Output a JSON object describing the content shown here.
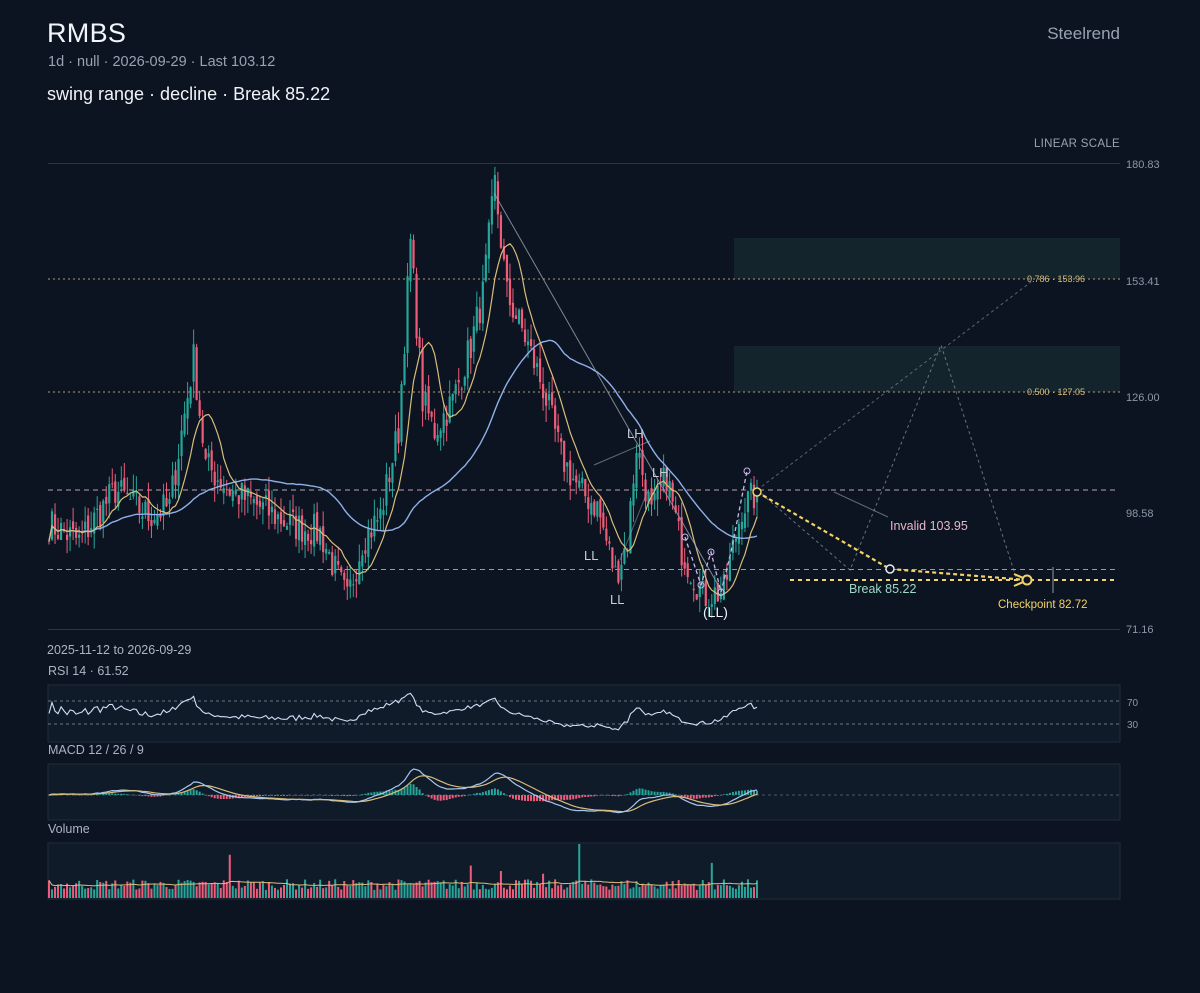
{
  "header": {
    "ticker": "RMBS",
    "meta": "1d · null · 2026-09-29 · Last 103.12",
    "setup": "swing range · decline · Break 85.22",
    "brand": "Steelrend",
    "scale_label": "LINEAR SCALE",
    "date_range": "2025-11-12 to 2026-09-29"
  },
  "panels": {
    "rsi": {
      "title": "RSI 14 · 61.52",
      "levels": [
        "70",
        "30"
      ]
    },
    "macd": {
      "title": "MACD 12 / 26 / 9"
    },
    "volume": {
      "title": "Volume"
    }
  },
  "annotations": {
    "invalid": "Invalid 103.95",
    "break": "Break 85.22",
    "checkpoint": "Checkpoint 82.72",
    "fib_786": "0.786 · 153.96",
    "fib_500": "0.500 · 127.05",
    "swings": [
      {
        "label": "LH",
        "value": 114.8
      },
      {
        "label": "LH",
        "value": 107.5
      },
      {
        "label": "LL",
        "value": 84.0
      },
      {
        "label": "LL",
        "value": 79.0
      },
      {
        "label": "(LL)",
        "value": 80.2
      }
    ]
  },
  "colors": {
    "background": "#0c1421",
    "up": "#26a69a",
    "down": "#ef5c7a",
    "ma_fast": "#d9bd7a",
    "ma_slow": "#8fb0e8",
    "projection": "#f3d267",
    "zone": "#14262e"
  },
  "chart_data": {
    "type": "candlestick",
    "title": "RMBS",
    "y_ticks": [
      180.83,
      153.41,
      126.0,
      98.58,
      71.16
    ],
    "ylim": [
      71.16,
      180.83
    ],
    "levels": {
      "invalid": 103.95,
      "break": 85.22,
      "checkpoint": 82.72,
      "fib_0_786": 153.96,
      "fib_0_500": 127.05
    },
    "key_points": [
      {
        "label": "start",
        "value": 96.0
      },
      {
        "label": "early high",
        "value": 135.0
      },
      {
        "label": "March low",
        "value": 78.0
      },
      {
        "label": "April high",
        "value": 162.0
      },
      {
        "label": "peak",
        "value": 176.0
      },
      {
        "label": "LH",
        "value": 114.8
      },
      {
        "label": "LL",
        "value": 84.0
      },
      {
        "label": "LH",
        "value": 107.5
      },
      {
        "label": "LL",
        "value": 79.0
      },
      {
        "label": "(LL)",
        "value": 80.2
      },
      {
        "label": "last",
        "value": 103.12
      }
    ],
    "rsi_last": 61.52,
    "x_start": "2025-11-12",
    "x_end": "2026-09-29"
  }
}
